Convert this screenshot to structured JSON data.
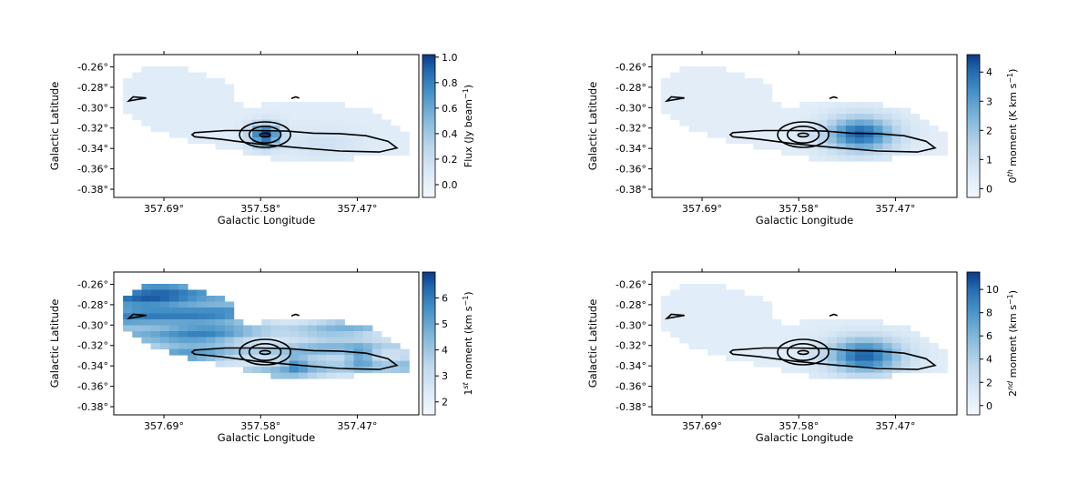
{
  "chart_data": [
    {
      "type": "heatmap",
      "panel": "flux",
      "xlabel": "Galactic Longitude",
      "ylabel": "Galactic Latitude",
      "x_ticks": [
        "357.69°",
        "357.58°",
        "357.47°"
      ],
      "x_tick_values": [
        357.69,
        357.58,
        357.47
      ],
      "y_ticks": [
        "-0.26°",
        "-0.28°",
        "-0.30°",
        "-0.32°",
        "-0.34°",
        "-0.36°",
        "-0.38°"
      ],
      "y_tick_values": [
        -0.26,
        -0.28,
        -0.3,
        -0.32,
        -0.34,
        -0.36,
        -0.38
      ],
      "xlim": [
        357.747,
        357.4
      ],
      "ylim": [
        -0.388,
        -0.248
      ],
      "colorbar": {
        "label": "Flux (Jy beam⁻¹)",
        "label_parts": [
          "Flux (Jy beam",
          "−1",
          ")"
        ],
        "ticks": [
          "0.0",
          "0.2",
          "0.4",
          "0.6",
          "0.8",
          "1.0"
        ],
        "tick_values": [
          0.0,
          0.2,
          0.4,
          0.6,
          0.8,
          1.0
        ],
        "range": [
          -0.1,
          1.02
        ]
      },
      "hotspots": [
        {
          "lon": 357.575,
          "lat": -0.327,
          "value": 1.0,
          "sigma_lon": 0.012,
          "sigma_lat": 0.008
        },
        {
          "lon": 357.51,
          "lat": -0.335,
          "value": 0.18,
          "sigma_lon": 0.03,
          "sigma_lat": 0.01
        }
      ],
      "base_level": 0.05
    },
    {
      "type": "heatmap",
      "panel": "moment0",
      "xlabel": "Galactic Longitude",
      "ylabel": "Galactic Latitude",
      "x_ticks": [
        "357.69°",
        "357.58°",
        "357.47°"
      ],
      "x_tick_values": [
        357.69,
        357.58,
        357.47
      ],
      "y_ticks": [
        "-0.26°",
        "-0.28°",
        "-0.30°",
        "-0.32°",
        "-0.34°",
        "-0.36°",
        "-0.38°"
      ],
      "y_tick_values": [
        -0.26,
        -0.28,
        -0.3,
        -0.32,
        -0.34,
        -0.36,
        -0.38
      ],
      "xlim": [
        357.747,
        357.4
      ],
      "ylim": [
        -0.388,
        -0.248
      ],
      "colorbar": {
        "label": "0th moment (K km s⁻¹)",
        "label_parts": [
          "0",
          "th",
          " moment (K km s",
          "−1",
          ")"
        ],
        "ticks": [
          "0",
          "1",
          "2",
          "3",
          "4"
        ],
        "tick_values": [
          0,
          1,
          2,
          3,
          4
        ],
        "range": [
          -0.3,
          4.6
        ]
      },
      "hotspots": [
        {
          "lon": 357.51,
          "lat": -0.326,
          "value": 4.2,
          "sigma_lon": 0.028,
          "sigma_lat": 0.012
        }
      ],
      "base_level": 0.3
    },
    {
      "type": "heatmap",
      "panel": "moment1",
      "xlabel": "Galactic Longitude",
      "ylabel": "Galactic Latitude",
      "x_ticks": [
        "357.69°",
        "357.58°",
        "357.47°"
      ],
      "x_tick_values": [
        357.69,
        357.58,
        357.47
      ],
      "y_ticks": [
        "-0.26°",
        "-0.28°",
        "-0.30°",
        "-0.32°",
        "-0.34°",
        "-0.36°",
        "-0.38°"
      ],
      "y_tick_values": [
        -0.26,
        -0.28,
        -0.3,
        -0.32,
        -0.34,
        -0.36,
        -0.38
      ],
      "xlim": [
        357.747,
        357.4
      ],
      "ylim": [
        -0.388,
        -0.248
      ],
      "colorbar": {
        "label": "1st moment (km s⁻¹)",
        "label_parts": [
          "1",
          "st",
          " moment (km s",
          "−1",
          ")"
        ],
        "ticks": [
          "2",
          "3",
          "4",
          "5",
          "6"
        ],
        "tick_values": [
          2,
          3,
          4,
          5,
          6
        ],
        "range": [
          1.5,
          7.0
        ]
      },
      "hotspots": [
        {
          "lon": 357.68,
          "lat": -0.28,
          "value": 6.2,
          "sigma_lon": 0.05,
          "sigma_lat": 0.03
        },
        {
          "lon": 357.465,
          "lat": -0.332,
          "value": 6.0,
          "sigma_lon": 0.012,
          "sigma_lat": 0.008
        },
        {
          "lon": 357.54,
          "lat": -0.338,
          "value": 5.2,
          "sigma_lon": 0.008,
          "sigma_lat": 0.006
        }
      ],
      "base_level": 3.6
    },
    {
      "type": "heatmap",
      "panel": "moment2",
      "xlabel": "Galactic Longitude",
      "ylabel": "Galactic Latitude",
      "x_ticks": [
        "357.69°",
        "357.58°",
        "357.47°"
      ],
      "x_tick_values": [
        357.69,
        357.58,
        357.47
      ],
      "y_ticks": [
        "-0.26°",
        "-0.28°",
        "-0.30°",
        "-0.32°",
        "-0.34°",
        "-0.36°",
        "-0.38°"
      ],
      "y_tick_values": [
        -0.26,
        -0.28,
        -0.3,
        -0.32,
        -0.34,
        -0.36,
        -0.38
      ],
      "xlim": [
        357.747,
        357.4
      ],
      "ylim": [
        -0.388,
        -0.248
      ],
      "colorbar": {
        "label": "2nd moment (km s⁻¹)",
        "label_parts": [
          "2",
          "nd",
          " moment (km s",
          "−1",
          ")"
        ],
        "ticks": [
          "0",
          "2",
          "4",
          "6",
          "8",
          "10"
        ],
        "tick_values": [
          0,
          2,
          4,
          6,
          8,
          10
        ],
        "range": [
          -0.8,
          11.5
        ]
      },
      "hotspots": [
        {
          "lon": 357.505,
          "lat": -0.33,
          "value": 10.5,
          "sigma_lon": 0.03,
          "sigma_lat": 0.012
        }
      ],
      "base_level": 0.8
    }
  ],
  "contours": {
    "outer": [
      [
        357.655,
        -0.3245
      ],
      [
        357.62,
        -0.3225
      ],
      [
        357.585,
        -0.3225
      ],
      [
        357.55,
        -0.323
      ],
      [
        357.52,
        -0.325
      ],
      [
        357.49,
        -0.3255
      ],
      [
        357.46,
        -0.3275
      ],
      [
        357.435,
        -0.333
      ],
      [
        357.425,
        -0.3395
      ],
      [
        357.445,
        -0.3435
      ],
      [
        357.49,
        -0.3425
      ],
      [
        357.535,
        -0.3395
      ],
      [
        357.585,
        -0.3355
      ],
      [
        357.625,
        -0.331
      ],
      [
        357.655,
        -0.3285
      ],
      [
        357.658,
        -0.3265
      ]
    ],
    "peak_rings": [
      {
        "lon": 357.575,
        "lat": -0.3265,
        "r_lon": 0.029,
        "r_lat": 0.0125
      },
      {
        "lon": 357.575,
        "lat": -0.3265,
        "r_lon": 0.018,
        "r_lat": 0.0082
      },
      {
        "lon": 357.575,
        "lat": -0.3268,
        "r_lon": 0.006,
        "r_lat": 0.0018
      }
    ],
    "small_west": [
      [
        357.73,
        -0.2935
      ],
      [
        357.725,
        -0.2895
      ],
      [
        357.71,
        -0.2905
      ],
      [
        357.72,
        -0.292
      ],
      [
        357.73,
        -0.2935
      ]
    ],
    "tiny_north": [
      [
        357.545,
        -0.291
      ],
      [
        357.54,
        -0.2895
      ],
      [
        357.536,
        -0.2907
      ]
    ]
  },
  "mask": [
    [
      357.715,
      -0.262
    ],
    [
      357.66,
      -0.262
    ],
    [
      357.64,
      -0.268
    ],
    [
      357.615,
      -0.275
    ],
    [
      357.615,
      -0.296
    ],
    [
      357.585,
      -0.3
    ],
    [
      357.56,
      -0.293
    ],
    [
      357.52,
      -0.294
    ],
    [
      357.49,
      -0.297
    ],
    [
      357.455,
      -0.302
    ],
    [
      357.425,
      -0.316
    ],
    [
      357.413,
      -0.33
    ],
    [
      357.413,
      -0.345
    ],
    [
      357.45,
      -0.349
    ],
    [
      357.5,
      -0.35
    ],
    [
      357.525,
      -0.356
    ],
    [
      357.56,
      -0.35
    ],
    [
      357.6,
      -0.344
    ],
    [
      357.635,
      -0.338
    ],
    [
      357.665,
      -0.333
    ],
    [
      357.69,
      -0.326
    ],
    [
      357.71,
      -0.318
    ],
    [
      357.725,
      -0.306
    ],
    [
      357.742,
      -0.3
    ],
    [
      357.742,
      -0.285
    ],
    [
      357.73,
      -0.27
    ]
  ]
}
